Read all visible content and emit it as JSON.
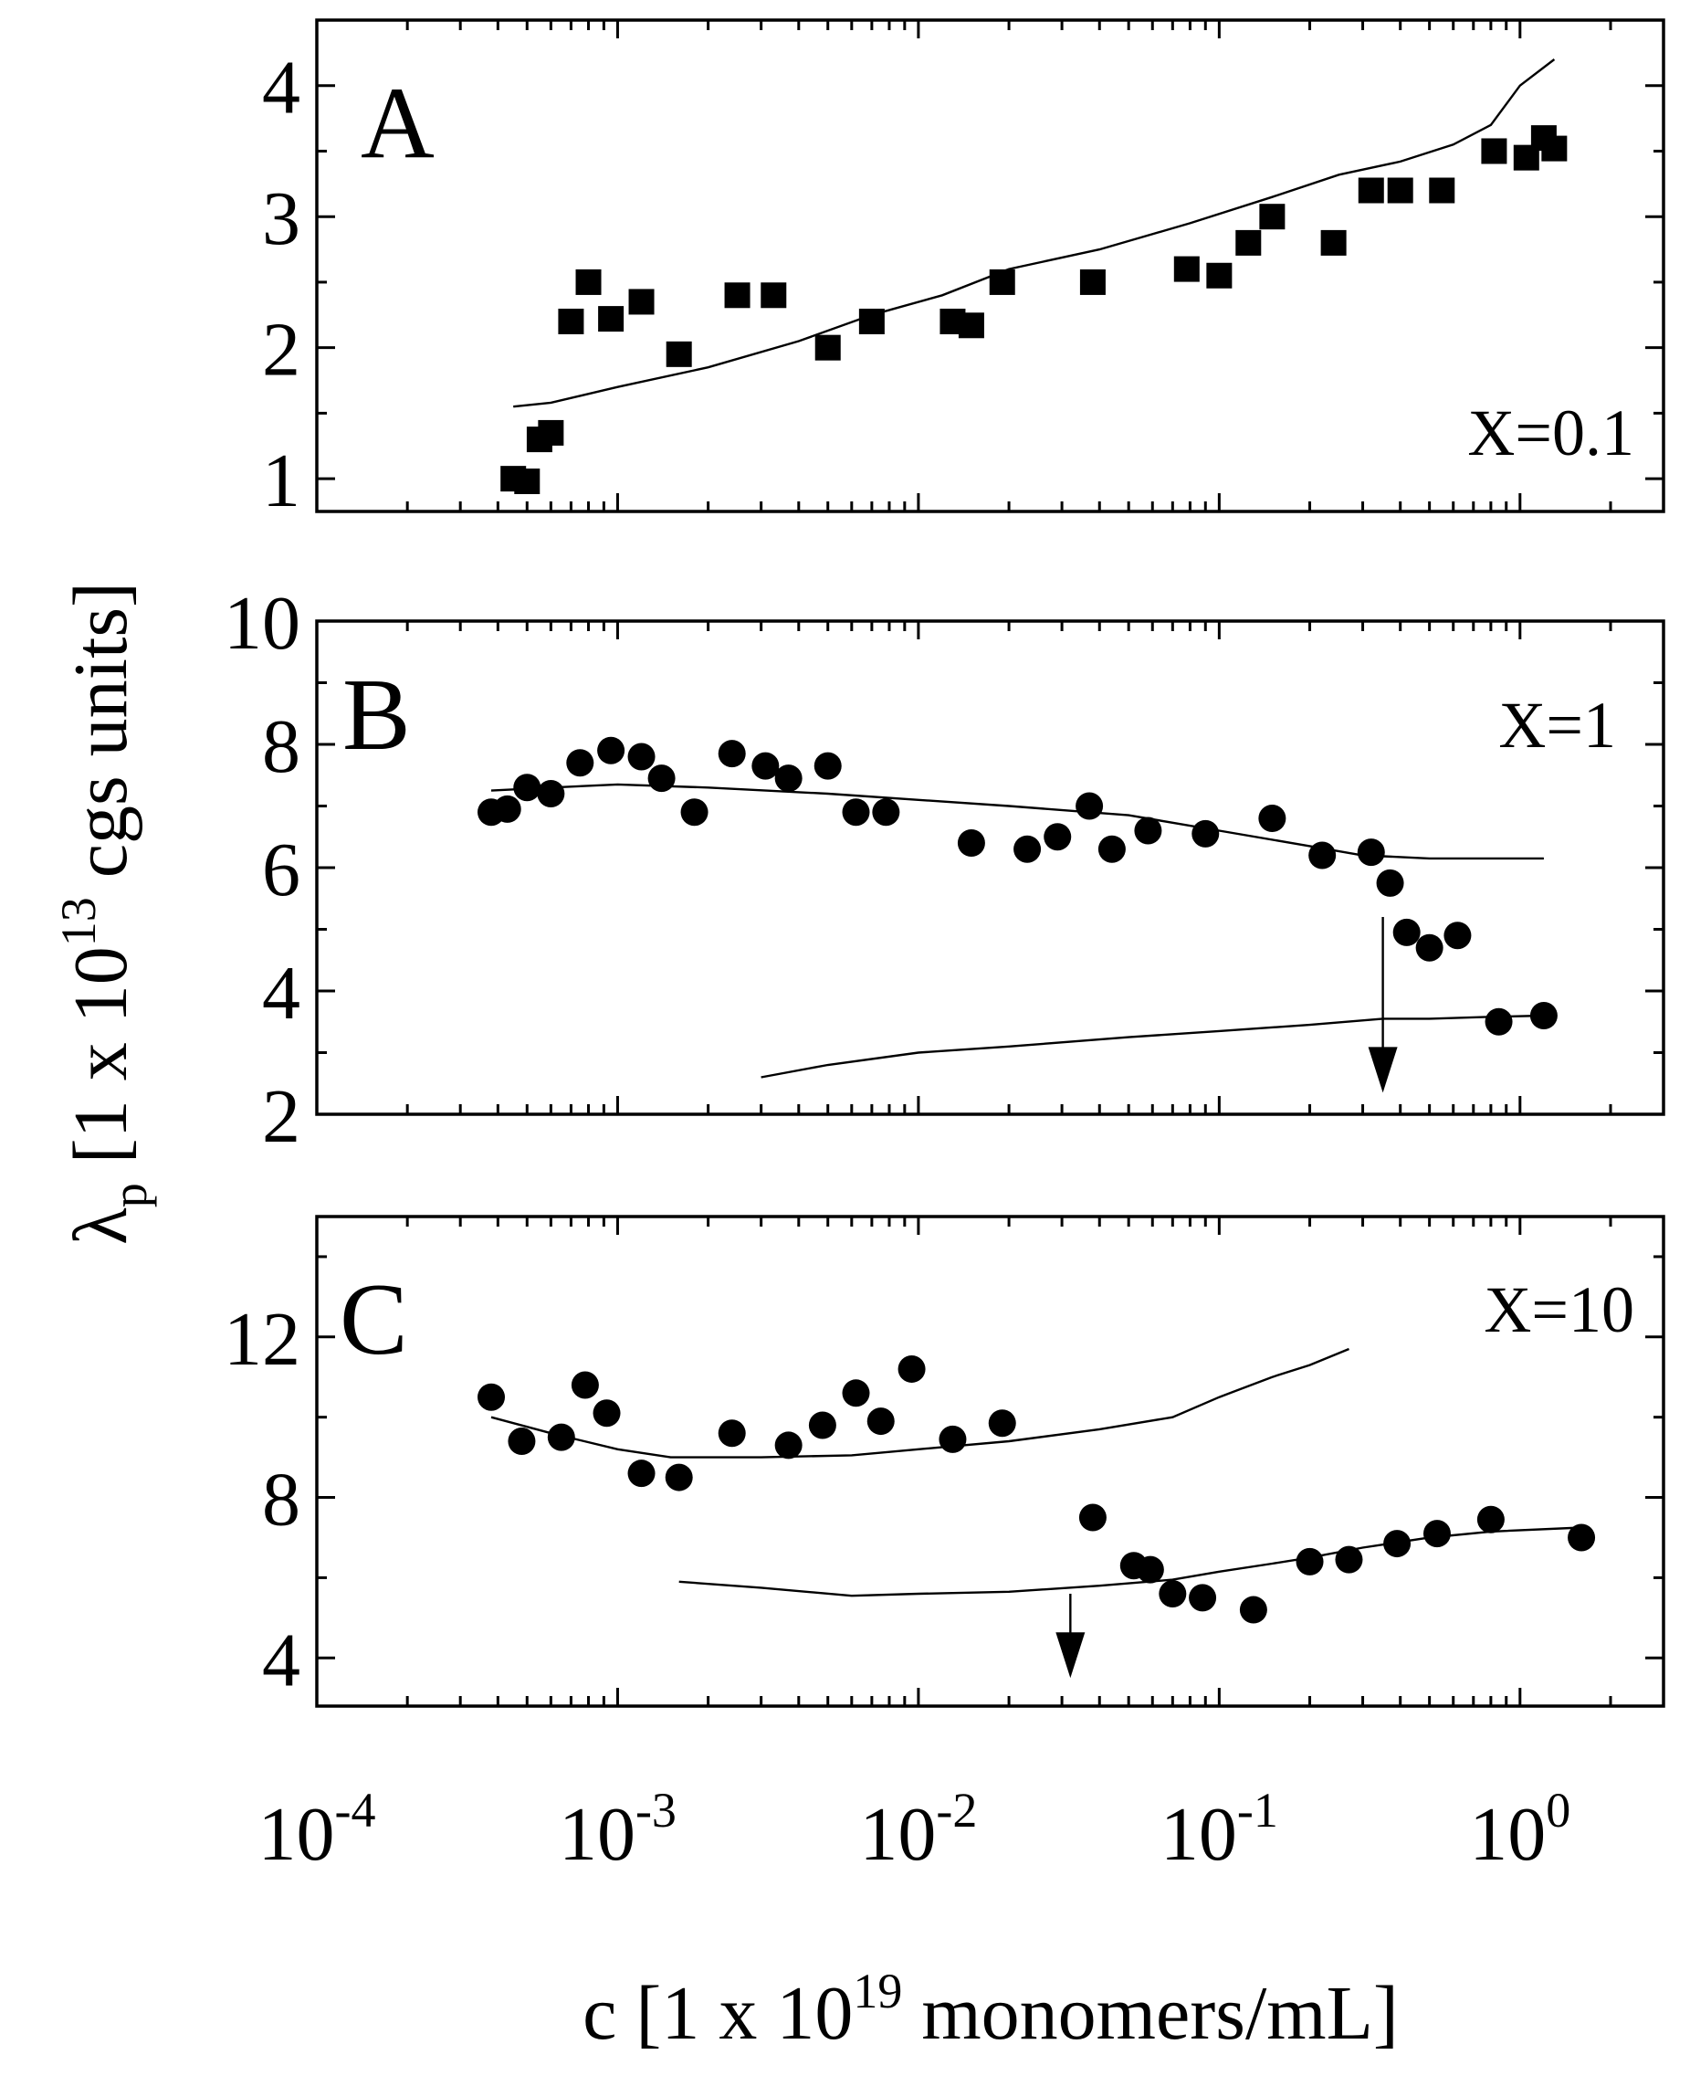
{
  "chart_data": {
    "type": "scatter",
    "shared_x_axis": {
      "label_prefix": "c  [1 x 10",
      "label_exp": "19",
      "label_suffix": " monomers/mL]",
      "scale": "log",
      "xlim": [
        0.0001,
        3
      ],
      "ticks": [
        {
          "value": 0.0001,
          "base": "10",
          "exp": "-4"
        },
        {
          "value": 0.001,
          "base": "10",
          "exp": "-3"
        },
        {
          "value": 0.01,
          "base": "10",
          "exp": "-2"
        },
        {
          "value": 0.1,
          "base": "10",
          "exp": "-1"
        },
        {
          "value": 1,
          "base": "10",
          "exp": "0"
        }
      ]
    },
    "shared_y_label": {
      "symbol": "λ",
      "sub": "p",
      "mid": " [1 x 10",
      "exp": "13",
      "suffix": " cgs units]"
    },
    "panels": [
      {
        "id": "A",
        "label": "A",
        "annotation": "X=0.1",
        "marker": "square",
        "ylim": [
          0.75,
          4.5
        ],
        "yticks": [
          1,
          2,
          3,
          4
        ],
        "ytick_labels": [
          "1",
          "2",
          "3",
          "4"
        ],
        "points": {
          "x": [
            0.00045,
            0.0005,
            0.00055,
            0.0006,
            0.0007,
            0.0008,
            0.00095,
            0.0012,
            0.0016,
            0.0025,
            0.0033,
            0.005,
            0.007,
            0.013,
            0.015,
            0.019,
            0.038,
            0.078,
            0.1,
            0.125,
            0.15,
            0.24,
            0.32,
            0.4,
            0.55,
            0.82,
            1.05,
            1.2,
            1.3
          ],
          "y": [
            1.0,
            0.98,
            1.3,
            1.35,
            2.2,
            2.5,
            2.22,
            2.35,
            1.95,
            2.4,
            2.4,
            2.0,
            2.2,
            2.2,
            2.17,
            2.5,
            2.5,
            2.6,
            2.55,
            2.8,
            3.0,
            2.8,
            3.2,
            3.2,
            3.2,
            3.5,
            3.45,
            3.6,
            3.52
          ]
        },
        "curves": [
          {
            "x": [
              0.00045,
              0.0006,
              0.001,
              0.002,
              0.004,
              0.007,
              0.012,
              0.02,
              0.04,
              0.08,
              0.15,
              0.25,
              0.4,
              0.6,
              0.8,
              1.0,
              1.3
            ],
            "y": [
              1.55,
              1.58,
              1.7,
              1.85,
              2.05,
              2.25,
              2.4,
              2.6,
              2.75,
              2.95,
              3.15,
              3.32,
              3.42,
              3.55,
              3.7,
              4.0,
              4.2
            ]
          }
        ],
        "arrows": []
      },
      {
        "id": "B",
        "label": "B",
        "annotation": "X=1",
        "marker": "circle",
        "ylim": [
          2,
          10
        ],
        "yticks": [
          2,
          4,
          6,
          8,
          10
        ],
        "ytick_labels": [
          "2",
          "4",
          "6",
          "8",
          "10"
        ],
        "points": {
          "x": [
            0.00038,
            0.00043,
            0.0005,
            0.0006,
            0.00075,
            0.00095,
            0.0012,
            0.0014,
            0.0018,
            0.0024,
            0.0031,
            0.0037,
            0.005,
            0.0062,
            0.0078,
            0.015,
            0.023,
            0.029,
            0.037,
            0.044,
            0.058,
            0.09,
            0.15,
            0.22,
            0.32,
            0.37,
            0.42,
            0.5,
            0.62,
            0.85,
            1.2
          ],
          "y": [
            6.9,
            6.95,
            7.3,
            7.2,
            7.7,
            7.9,
            7.8,
            7.45,
            6.9,
            7.85,
            7.65,
            7.45,
            7.65,
            6.9,
            6.9,
            6.4,
            6.3,
            6.5,
            7.0,
            6.3,
            6.6,
            6.55,
            6.8,
            6.2,
            6.25,
            5.75,
            4.95,
            4.7,
            4.9,
            3.5,
            3.6
          ]
        },
        "curves": [
          {
            "x": [
              0.00038,
              0.0006,
              0.001,
              0.002,
              0.005,
              0.01,
              0.02,
              0.05,
              0.1,
              0.2,
              0.3,
              0.5,
              0.8,
              1.2
            ],
            "y": [
              7.25,
              7.3,
              7.35,
              7.3,
              7.2,
              7.1,
              7.0,
              6.85,
              6.6,
              6.35,
              6.2,
              6.15,
              6.15,
              6.15
            ]
          },
          {
            "x": [
              0.003,
              0.005,
              0.01,
              0.02,
              0.05,
              0.1,
              0.2,
              0.35,
              0.5,
              0.8,
              1.2
            ],
            "y": [
              2.6,
              2.8,
              3.0,
              3.1,
              3.25,
              3.35,
              3.45,
              3.55,
              3.55,
              3.58,
              3.6
            ]
          }
        ],
        "arrows": [
          {
            "x": 0.35,
            "y_from": 5.2,
            "y_to": 2.35
          }
        ]
      },
      {
        "id": "C",
        "label": "C",
        "annotation": "X=10",
        "marker": "circle",
        "ylim": [
          2.8,
          15
        ],
        "yticks": [
          4,
          8,
          12
        ],
        "ytick_labels": [
          "4",
          "8",
          "12"
        ],
        "points": {
          "x": [
            0.00038,
            0.00048,
            0.00065,
            0.00078,
            0.00092,
            0.0012,
            0.0016,
            0.0024,
            0.0037,
            0.0048,
            0.0062,
            0.0075,
            0.0095,
            0.013,
            0.019,
            0.038,
            0.052,
            0.059,
            0.07,
            0.088,
            0.13,
            0.2,
            0.27,
            0.39,
            0.53,
            0.8,
            1.6
          ],
          "y": [
            10.5,
            9.4,
            9.5,
            10.8,
            10.1,
            8.6,
            8.5,
            9.6,
            9.3,
            9.8,
            10.6,
            9.9,
            11.2,
            9.45,
            9.85,
            7.5,
            6.3,
            6.2,
            5.6,
            5.5,
            5.2,
            6.4,
            6.45,
            6.85,
            7.1,
            7.45,
            7.0
          ]
        },
        "curves": [
          {
            "x": [
              0.00038,
              0.0006,
              0.001,
              0.0015,
              0.003,
              0.006,
              0.01,
              0.02,
              0.04,
              0.07,
              0.1,
              0.15,
              0.2,
              0.27
            ],
            "y": [
              10.0,
              9.6,
              9.2,
              9.0,
              9.0,
              9.05,
              9.2,
              9.4,
              9.7,
              10.0,
              10.5,
              11.0,
              11.3,
              11.7
            ]
          },
          {
            "x": [
              0.0016,
              0.003,
              0.006,
              0.01,
              0.02,
              0.04,
              0.07,
              0.1,
              0.15,
              0.2,
              0.3,
              0.5,
              0.8,
              1.6
            ],
            "y": [
              5.9,
              5.75,
              5.55,
              5.6,
              5.65,
              5.8,
              5.95,
              6.15,
              6.35,
              6.5,
              6.75,
              7.0,
              7.15,
              7.25
            ]
          }
        ],
        "arrows": [
          {
            "x": 0.032,
            "y_from": 5.6,
            "y_to": 3.5
          }
        ]
      }
    ]
  }
}
